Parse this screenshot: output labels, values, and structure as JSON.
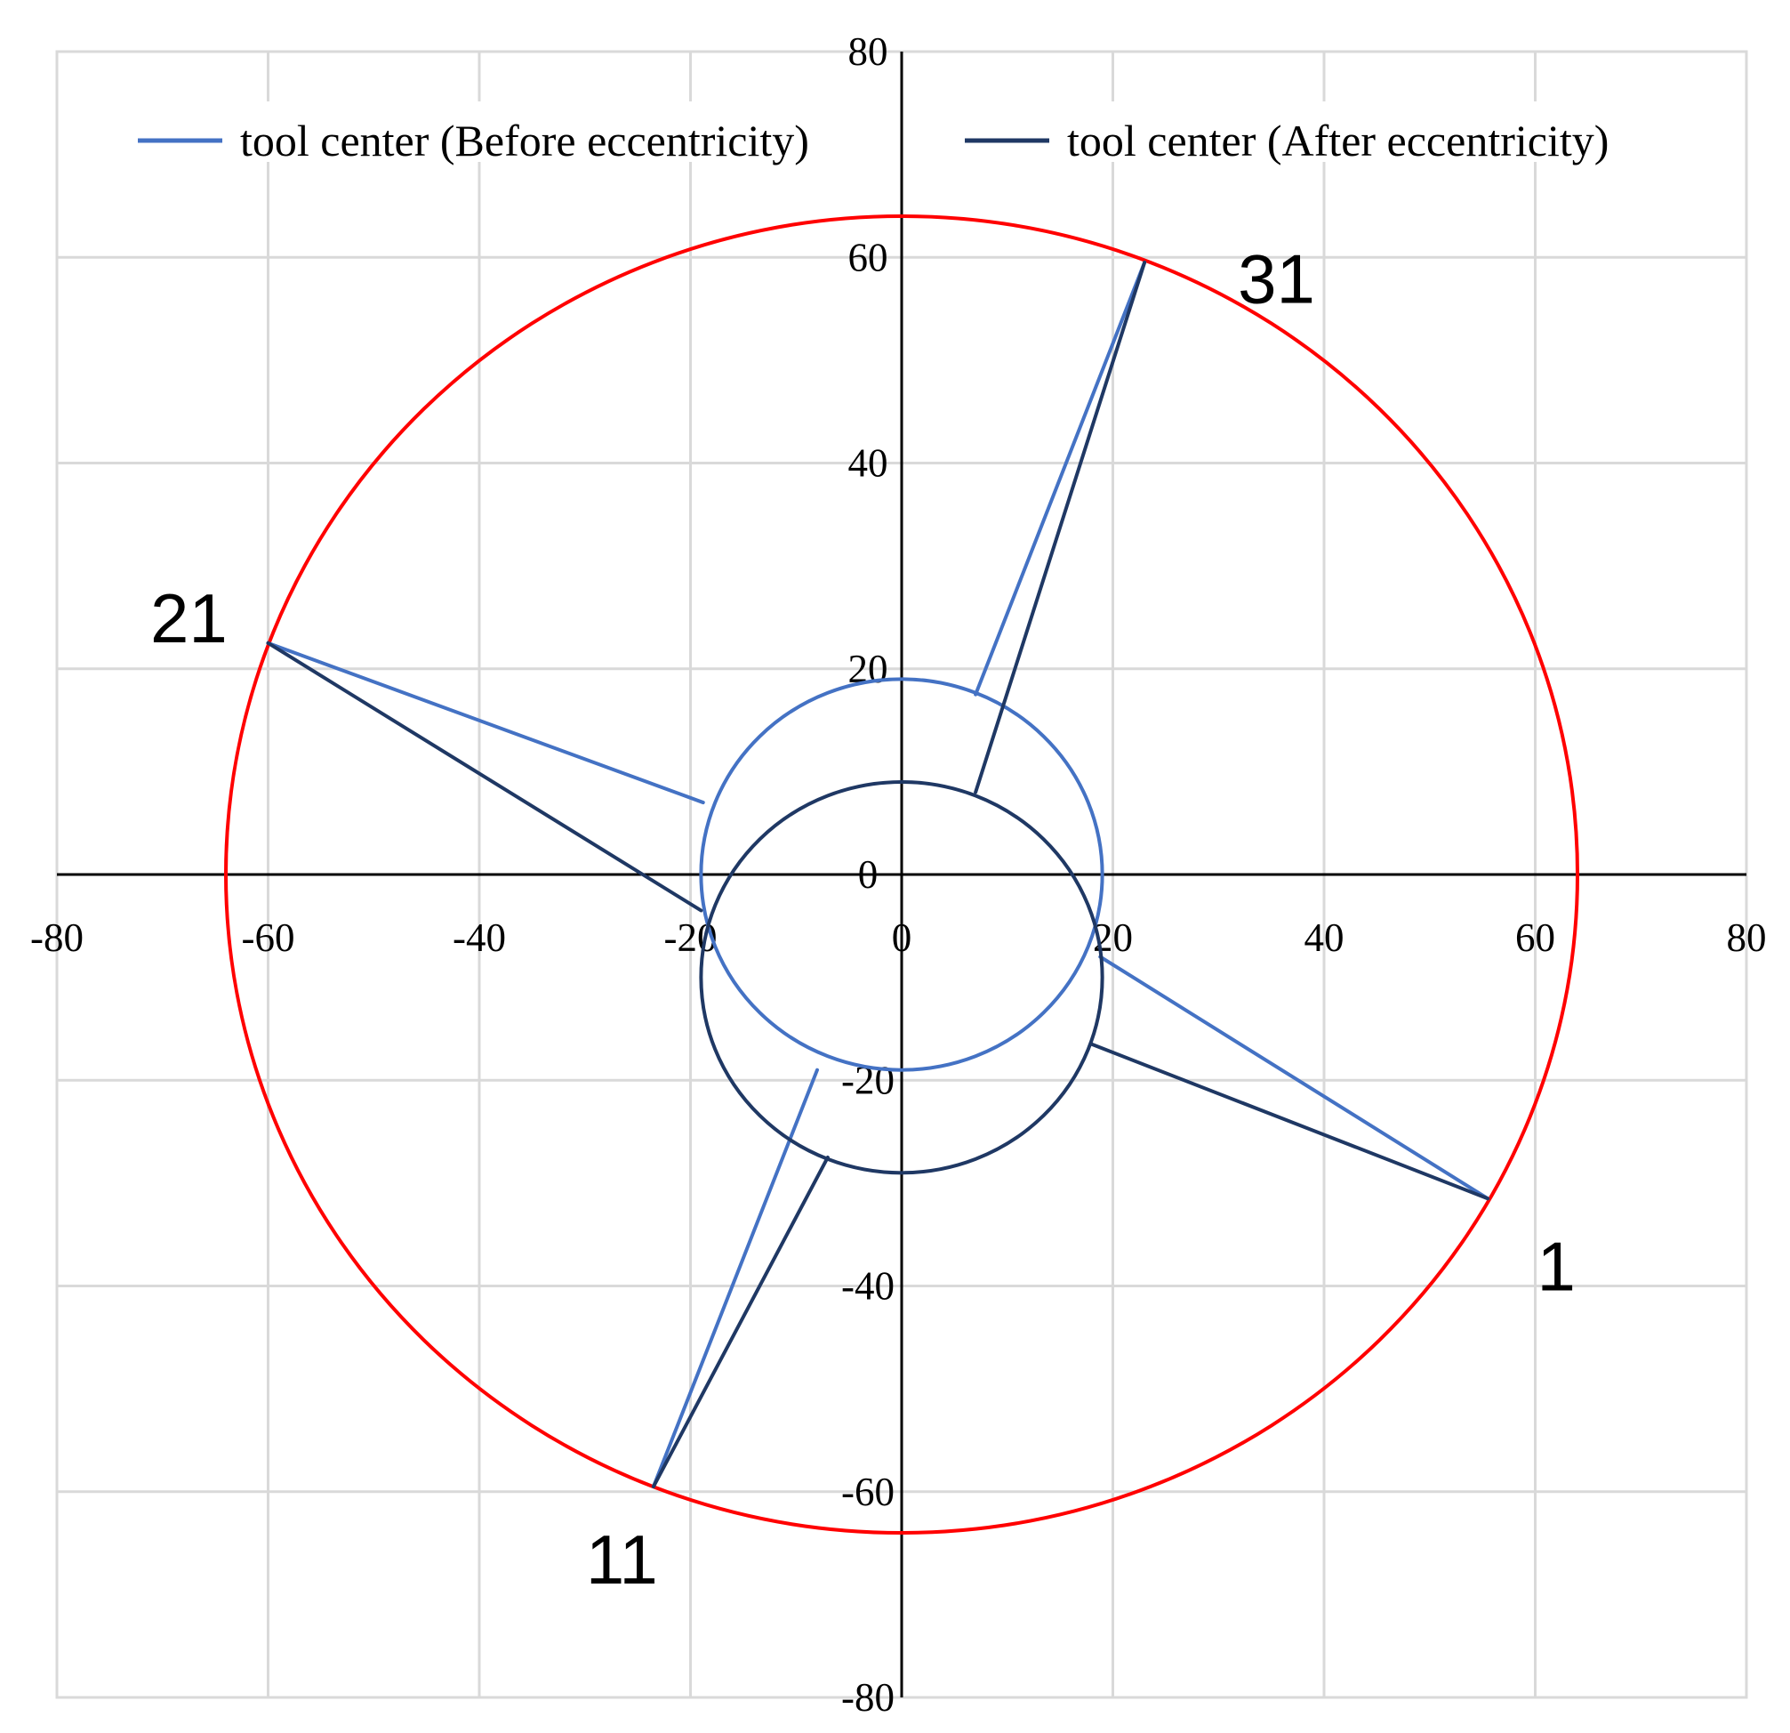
{
  "chart_data": {
    "type": "scatter",
    "title": "",
    "xlabel": "",
    "ylabel": "",
    "xlim": [
      -80,
      80
    ],
    "ylim": [
      -80,
      80
    ],
    "xticks": [
      -80,
      -60,
      -40,
      -20,
      0,
      20,
      40,
      60,
      80
    ],
    "yticks": [
      -80,
      -60,
      -40,
      -20,
      0,
      20,
      40,
      60,
      80
    ],
    "grid": true,
    "legend": {
      "position": "top"
    },
    "colors": {
      "outer_circle": "#ff0000",
      "before": "#4472c4",
      "after": "#1f3864",
      "axis": "#000000",
      "grid": "#d9d9d9"
    },
    "series": [
      {
        "name": "tool center (Before eccentricity)",
        "style": "line",
        "circle": {
          "center": [
            0,
            0
          ],
          "radius": 19
        },
        "connections": [
          {
            "from": [
              55.5,
              -31.5
            ],
            "to": [
              18.8,
              -8
            ]
          },
          {
            "from": [
              -23.5,
              -59.5
            ],
            "to": [
              -8,
              -19
            ]
          },
          {
            "from": [
              -60,
              22.5
            ],
            "to": [
              -18.8,
              7
            ]
          },
          {
            "from": [
              23,
              59.5
            ],
            "to": [
              7,
              17.5
            ]
          }
        ]
      },
      {
        "name": "tool center (After eccentricity)",
        "style": "line",
        "circle": {
          "center": [
            0,
            -10
          ],
          "radius": 19
        },
        "connections": [
          {
            "from": [
              55.5,
              -31.5
            ],
            "to": [
              18,
              -16.5
            ]
          },
          {
            "from": [
              -23.5,
              -59.5
            ],
            "to": [
              -7,
              -27.5
            ]
          },
          {
            "from": [
              -60,
              22.5
            ],
            "to": [
              -19,
              -3.5
            ]
          },
          {
            "from": [
              23,
              59.5
            ],
            "to": [
              7,
              8
            ]
          }
        ]
      },
      {
        "style": "line",
        "circle": {
          "center": [
            0,
            0
          ],
          "radius": 64
        }
      }
    ],
    "annotations": [
      {
        "text": "1",
        "x": 62,
        "y": -38
      },
      {
        "text": "11",
        "x": -26.5,
        "y": -66.5
      },
      {
        "text": "21",
        "x": -67.5,
        "y": 25
      },
      {
        "text": "31",
        "x": 35.5,
        "y": 58
      }
    ]
  }
}
